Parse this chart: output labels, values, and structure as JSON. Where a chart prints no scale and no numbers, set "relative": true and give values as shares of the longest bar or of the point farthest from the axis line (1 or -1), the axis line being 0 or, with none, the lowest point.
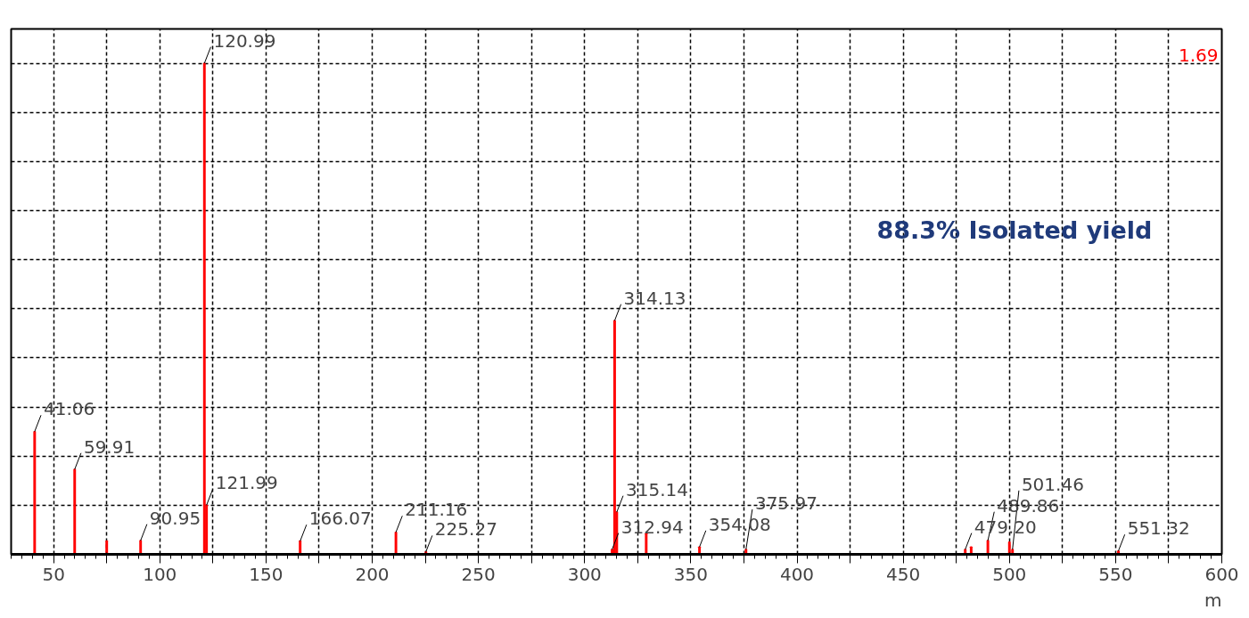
{
  "chart_data": {
    "type": "bar",
    "relative": true,
    "xlabel": "m",
    "xlim": [
      30,
      600
    ],
    "xticks": [
      50,
      {
        "value": 75,
        "label": null
      },
      100,
      {
        "value": 125,
        "label": null
      },
      150,
      {
        "value": 175,
        "label": null
      },
      200,
      {
        "value": 225,
        "label": null
      },
      250,
      {
        "value": 275,
        "label": null
      },
      300,
      {
        "value": 325,
        "label": null
      },
      350,
      {
        "value": 375,
        "label": null
      },
      400,
      {
        "value": 425,
        "label": null
      },
      450,
      {
        "value": 475,
        "label": null
      },
      500,
      {
        "value": 525,
        "label": null
      },
      550,
      {
        "value": 575,
        "label": null
      },
      600
    ],
    "grid": true,
    "series": [
      {
        "color": "#ff0000",
        "x": [
          41.06,
          59.91,
          75,
          90.95,
          120.99,
          121.99,
          166.07,
          211.16,
          225.27,
          312.94,
          314.13,
          315.14,
          329,
          354.08,
          375.97,
          479.2,
          482,
          489.86,
          500,
          501.46,
          551.32
        ],
        "values": [
          0.25,
          0.173,
          0.027,
          0.028,
          1,
          0.1,
          0.027,
          0.045,
          0.005,
          0.01,
          0.476,
          0.086,
          0.042,
          0.015,
          0.01,
          0.01,
          0.015,
          0.028,
          0.025,
          0.01,
          0.007
        ]
      }
    ],
    "annotations": [
      {
        "text": "41.06",
        "x": 41.06,
        "y": 0.25
      },
      {
        "text": "59.91",
        "x": 59.91,
        "y": 0.173
      },
      {
        "text": "90.95",
        "x": 90.95,
        "y": 0.028
      },
      {
        "text": "120.99",
        "x": 120.99,
        "y": 1
      },
      {
        "text": "121.99",
        "x": 121.99,
        "y": 0.1
      },
      {
        "text": "166.07",
        "x": 166.07,
        "y": 0.027
      },
      {
        "text": "211.16",
        "x": 211.16,
        "y": 0.045
      },
      {
        "text": "225.27",
        "x": 225.27,
        "y": 0.005
      },
      {
        "text": "312.94",
        "x": 312.94,
        "y": 0.01
      },
      {
        "text": "314.13",
        "x": 314.13,
        "y": 0.476
      },
      {
        "text": "315.14",
        "x": 315.14,
        "y": 0.086
      },
      {
        "text": "354.08",
        "x": 354.08,
        "y": 0.015
      },
      {
        "text": "375.97",
        "x": 375.97,
        "y": 0.01
      },
      {
        "text": "479.20",
        "x": 479.2,
        "y": 0.01
      },
      {
        "text": "489.86",
        "x": 489.86,
        "y": 0.028
      },
      {
        "text": "501.46",
        "x": 501.46,
        "y": 0.01
      },
      {
        "text": "551.32",
        "x": 551.32,
        "y": 0.007
      },
      "88.3% Isolated yield",
      "1.69"
    ]
  }
}
